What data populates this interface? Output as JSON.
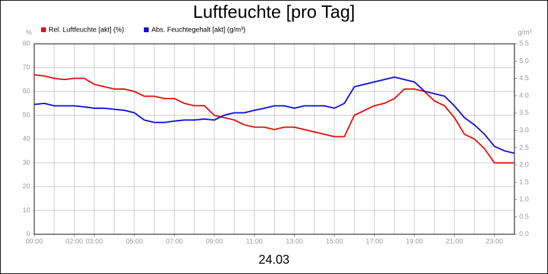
{
  "chart_data": {
    "type": "line",
    "title": "Luftfeuchte [pro Tag]",
    "x_label": "24.03",
    "y_unit": "%",
    "y2_unit": "g/m³",
    "x": [
      0,
      0.5,
      1,
      1.5,
      2,
      2.5,
      3,
      3.5,
      4,
      4.5,
      5,
      5.5,
      6,
      6.5,
      7,
      7.5,
      8,
      8.5,
      9,
      9.5,
      10,
      10.5,
      11,
      11.5,
      12,
      12.5,
      13,
      13.5,
      14,
      14.5,
      15,
      15.5,
      16,
      16.5,
      17,
      17.5,
      18,
      18.5,
      19,
      19.5,
      20,
      20.5,
      21,
      21.5,
      22,
      22.5,
      23,
      23.5,
      24
    ],
    "xlim": [
      0,
      24
    ],
    "xticks": [
      {
        "value": 0,
        "label": "00:00"
      },
      {
        "value": 2,
        "label": "02:00"
      },
      {
        "value": 3,
        "label": "03:00"
      },
      {
        "value": 5,
        "label": "05:00"
      },
      {
        "value": 7,
        "label": "07:00"
      },
      {
        "value": 9,
        "label": "09:00"
      },
      {
        "value": 11,
        "label": "11:00"
      },
      {
        "value": 13,
        "label": "13:00"
      },
      {
        "value": 15,
        "label": "15:00"
      },
      {
        "value": 17,
        "label": "17:00"
      },
      {
        "value": 19,
        "label": "19:00"
      },
      {
        "value": 21,
        "label": "21:00"
      },
      {
        "value": 23,
        "label": "23:00"
      }
    ],
    "xgrid": [
      0,
      1,
      2,
      3,
      4,
      5,
      6,
      7,
      8,
      9,
      10,
      11,
      12,
      13,
      14,
      15,
      16,
      17,
      18,
      19,
      20,
      21,
      22,
      23,
      24
    ],
    "ylim": [
      0,
      80
    ],
    "yticks": [
      0,
      10,
      20,
      30,
      40,
      50,
      60,
      70,
      80
    ],
    "y2lim": [
      0,
      5.5
    ],
    "y2ticks": [
      {
        "value": 0,
        "label": "0.0"
      },
      0.5,
      {
        "value": 1,
        "label": "1.0"
      },
      1.5,
      {
        "value": 2,
        "label": "2.0"
      },
      2.5,
      {
        "value": 3,
        "label": "3.0"
      },
      3.5,
      {
        "value": 4,
        "label": "4.0"
      },
      4.5,
      {
        "value": 5,
        "label": "5.0"
      },
      5.5
    ],
    "grid": true,
    "series": [
      {
        "name": "Rel. Luftfeuchte [akt] (%)",
        "color": "#e81010",
        "values": [
          67,
          66.5,
          65.5,
          65,
          65.5,
          65.5,
          63,
          62,
          61,
          61,
          60,
          58,
          58,
          57,
          57,
          55,
          54,
          54,
          50,
          49,
          48,
          46,
          45,
          45,
          44,
          45,
          45,
          44,
          43,
          42,
          41,
          41,
          50,
          52,
          54,
          55,
          57,
          61,
          61,
          60,
          56,
          54,
          49,
          42,
          40,
          36,
          30,
          30,
          30
        ]
      },
      {
        "name": "Abs. Feuchtegehalt [akt] (g/m³)",
        "color": "#1010e0",
        "axis": "y2",
        "values": [
          3.75,
          3.78,
          3.71,
          3.71,
          3.71,
          3.68,
          3.64,
          3.64,
          3.61,
          3.58,
          3.51,
          3.3,
          3.23,
          3.23,
          3.27,
          3.3,
          3.3,
          3.33,
          3.3,
          3.44,
          3.51,
          3.51,
          3.58,
          3.64,
          3.71,
          3.71,
          3.64,
          3.71,
          3.71,
          3.71,
          3.64,
          3.78,
          4.26,
          4.33,
          4.4,
          4.47,
          4.54,
          4.47,
          4.4,
          4.13,
          4.06,
          3.99,
          3.71,
          3.37,
          3.16,
          2.89,
          2.54,
          2.41,
          2.34
        ]
      }
    ]
  }
}
